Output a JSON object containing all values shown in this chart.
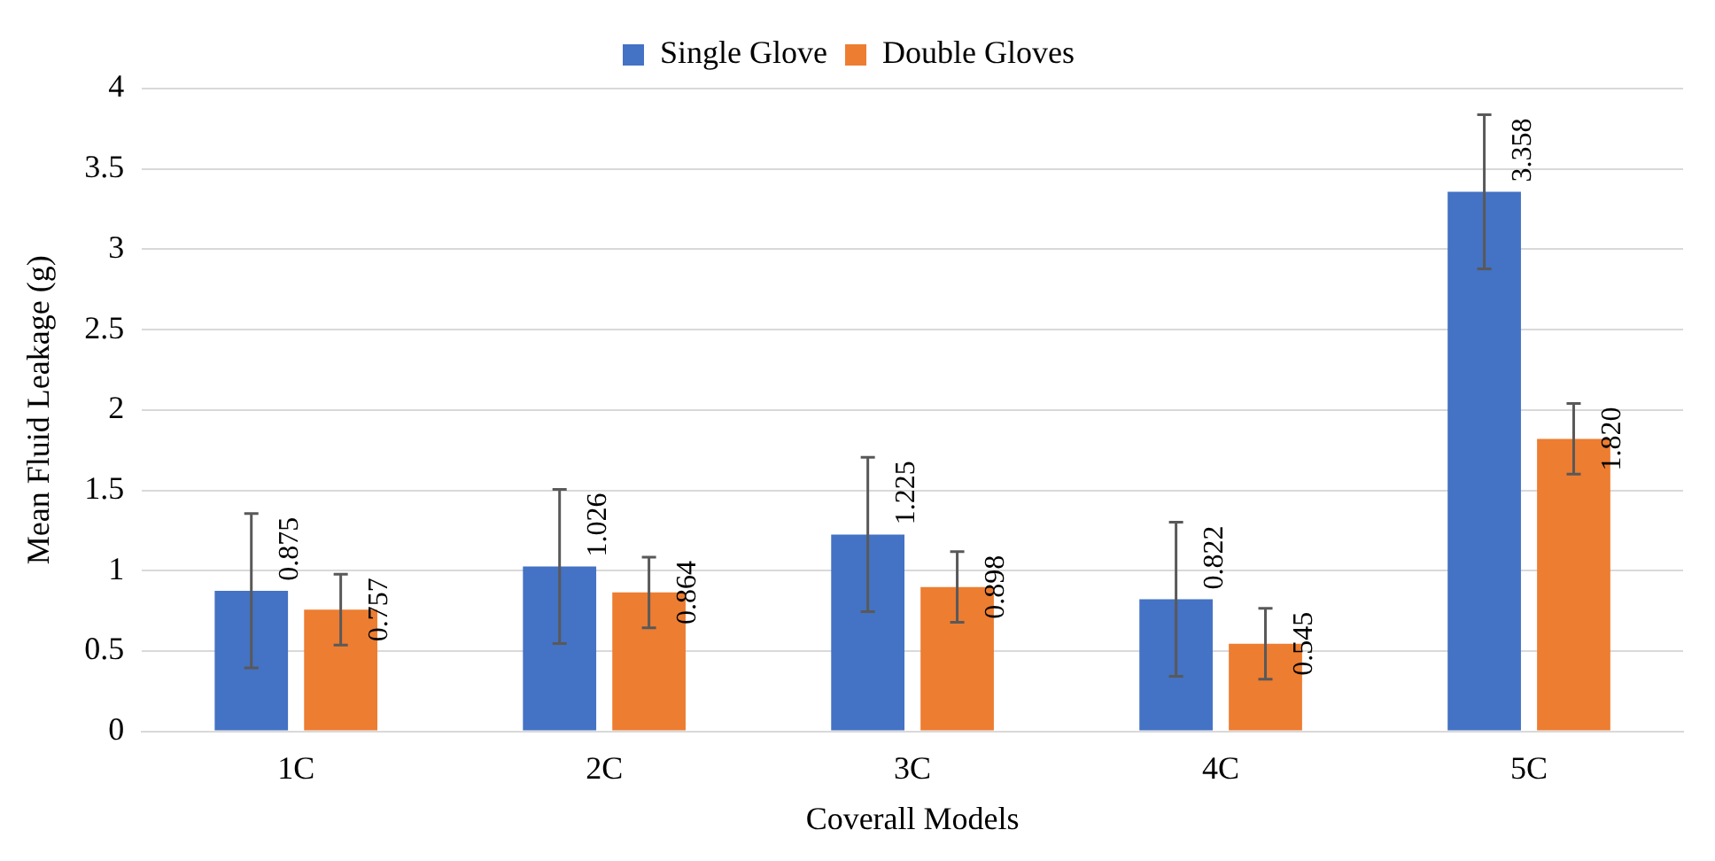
{
  "chart_data": {
    "type": "bar",
    "categories": [
      "1C",
      "2C",
      "3C",
      "4C",
      "5C"
    ],
    "series": [
      {
        "name": "Single Glove",
        "color": "#4472c4",
        "values": [
          0.875,
          1.026,
          1.225,
          0.822,
          3.358
        ],
        "errors": [
          0.48,
          0.48,
          0.48,
          0.48,
          0.48
        ],
        "value_labels": [
          "0.875",
          "1.026",
          "1.225",
          "0.822",
          "3.358"
        ]
      },
      {
        "name": "Double Gloves",
        "color": "#ed7d31",
        "values": [
          0.757,
          0.864,
          0.898,
          0.545,
          1.82
        ],
        "errors": [
          0.22,
          0.22,
          0.22,
          0.22,
          0.22
        ],
        "value_labels": [
          "0.757",
          "0.864",
          "0.898",
          "0.545",
          "1.820"
        ]
      }
    ],
    "xlabel": "Coverall Models",
    "ylabel": "Mean Fluid Leakage (g)",
    "ylim": [
      0,
      4
    ],
    "yticks": [
      0,
      0.5,
      1,
      1.5,
      2,
      2.5,
      3,
      3.5,
      4
    ],
    "grid": "y",
    "legend": "top"
  }
}
